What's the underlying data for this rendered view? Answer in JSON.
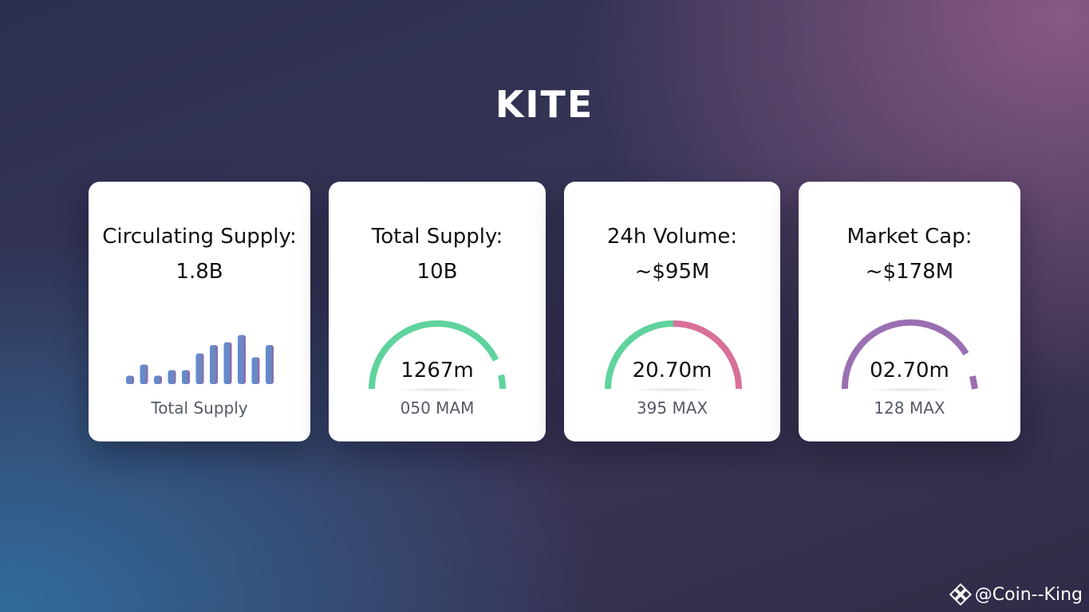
{
  "title": "KITE",
  "cards": [
    {
      "title": "Circulating Supply:",
      "value": "1.8B",
      "sub": "Total Supply",
      "visual": "bar-sparkline",
      "bar_levels": [
        0.15,
        0.35,
        0.15,
        0.25,
        0.25,
        0.55,
        0.7,
        0.75,
        0.88,
        0.48,
        0.7
      ],
      "colors": [
        "#5b8fd0",
        "#8b6aa8"
      ]
    },
    {
      "title": "Total Supply:",
      "value": "10B",
      "gauge_value": "1267m",
      "sub": "050 MAM",
      "gauge_color": "#5fd39d"
    },
    {
      "title": "24h Volume:",
      "value": "~$95M",
      "gauge_value": "20.70m",
      "sub": "395 MAX",
      "gauge_colors": [
        "#5fd39d",
        "#d9709a"
      ],
      "gauge_split": 0.5
    },
    {
      "title": "Market Cap:",
      "value": "~$178M",
      "gauge_value": "02.70m",
      "sub": "128 MAX",
      "gauge_color": "#9a6fb2"
    }
  ],
  "watermark": {
    "icon": "binance-diamond-icon",
    "text": "@Coin--King"
  }
}
